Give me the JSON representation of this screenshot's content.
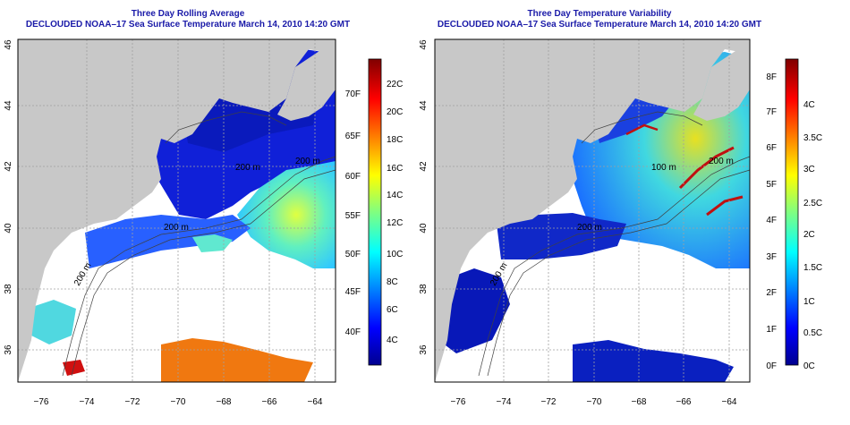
{
  "panels": [
    {
      "title": "Three Day Rolling Average",
      "subtitle": "DECLOUDED NOAA–17 Sea Surface Temperature March 14, 2010 14:20 GMT",
      "x_ticks": [
        "−76",
        "−74",
        "−72",
        "−70",
        "−68",
        "−66",
        "−64"
      ],
      "y_ticks": [
        "36",
        "38",
        "40",
        "42",
        "44",
        "46"
      ],
      "contour_labels": [
        "200 m",
        "200 m",
        "200 m",
        "200 m"
      ],
      "colorbar": {
        "f_labels": [
          "40F",
          "45F",
          "50F",
          "55F",
          "60F",
          "65F",
          "70F"
        ],
        "c_labels": [
          "4C",
          "6C",
          "8C",
          "10C",
          "12C",
          "14C",
          "16C",
          "18C",
          "20C",
          "22C"
        ]
      }
    },
    {
      "title": "Three Day Temperature Variability",
      "subtitle": "DECLOUDED NOAA–17 Sea Surface Temperature March 14, 2010 14:20 GMT",
      "x_ticks": [
        "−76",
        "−74",
        "−72",
        "−70",
        "−68",
        "−66",
        "−64"
      ],
      "y_ticks": [
        "36",
        "38",
        "40",
        "42",
        "44",
        "46"
      ],
      "contour_labels": [
        "200 m",
        "100 m",
        "200 m",
        "200 m"
      ],
      "colorbar": {
        "f_labels": [
          "0F",
          "1F",
          "2F",
          "3F",
          "4F",
          "5F",
          "6F",
          "7F",
          "8F"
        ],
        "c_labels": [
          "0C",
          "0.5C",
          "1C",
          "1.5C",
          "2C",
          "2.5C",
          "3C",
          "3.5C",
          "4C"
        ]
      }
    }
  ],
  "colors": {
    "land": "#c8c8c8",
    "ocean_no_data": "#ffffff",
    "title_blue": "#1a1aa8"
  }
}
